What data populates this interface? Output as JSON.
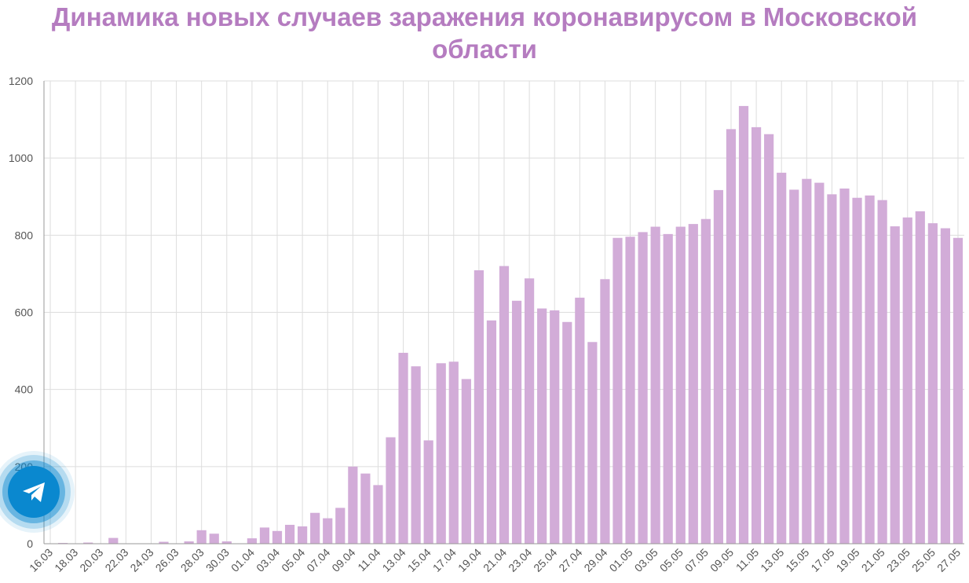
{
  "header": {
    "title_line1": "Динамика новых случаев заражения коронавирусом в Московской",
    "title_line2": "области"
  },
  "colors": {
    "bar": "#d2acd8",
    "title": "#b57cc0",
    "grid": "#dddddd",
    "telegram": "#0a88cf"
  },
  "telegram_button": {
    "icon": "telegram-icon"
  },
  "chart_data": {
    "type": "bar",
    "title": "Динамика новых случаев заражения коронавирусом в Московской области",
    "xlabel": "",
    "ylabel": "",
    "ylim": [
      0,
      1200
    ],
    "yticks": [
      0,
      200,
      400,
      600,
      800,
      1000,
      1200
    ],
    "grid": true,
    "categories": [
      "16.03",
      "17.03",
      "18.03",
      "19.03",
      "20.03",
      "21.03",
      "22.03",
      "23.03",
      "24.03",
      "25.03",
      "26.03",
      "27.03",
      "28.03",
      "29.03",
      "30.03",
      "31.03",
      "01.04",
      "02.04",
      "03.04",
      "04.04",
      "05.04",
      "06.04",
      "07.04",
      "08.04",
      "09.04",
      "10.04",
      "11.04",
      "12.04",
      "13.04",
      "14.04",
      "15.04",
      "16.04",
      "17.04",
      "18.04",
      "19.04",
      "20.04",
      "21.04",
      "22.04",
      "23.04",
      "24.04",
      "25.04",
      "26.04",
      "27.04",
      "28.04",
      "29.04",
      "30.04",
      "01.05",
      "02.05",
      "03.05",
      "04.05",
      "05.05",
      "06.05",
      "07.05",
      "08.05",
      "09.05",
      "10.05",
      "11.05",
      "12.05",
      "13.05",
      "14.05",
      "15.05",
      "16.05",
      "17.05",
      "18.05",
      "19.05",
      "20.05",
      "21.05",
      "22.05",
      "23.05",
      "24.05",
      "25.05",
      "26.05",
      "27.05"
    ],
    "tick_labels": [
      "16.03",
      "18.03",
      "20.03",
      "22.03",
      "24.03",
      "26.03",
      "28.03",
      "30.03",
      "01.04",
      "03.04",
      "05.04",
      "07.04",
      "09.04",
      "11.04",
      "13.04",
      "15.04",
      "17.04",
      "19.04",
      "21.04",
      "23.04",
      "25.04",
      "27.04",
      "29.04",
      "01.05",
      "03.05",
      "05.05",
      "07.05",
      "09.05",
      "11.05",
      "13.05",
      "15.05",
      "17.05",
      "19.05",
      "21.05",
      "23.05",
      "25.05",
      "27.05"
    ],
    "values": [
      1,
      2,
      1,
      3,
      0,
      15,
      0,
      0,
      0,
      5,
      0,
      6,
      35,
      26,
      6,
      0,
      14,
      42,
      33,
      49,
      45,
      80,
      66,
      93,
      200,
      182,
      152,
      276,
      495,
      460,
      268,
      468,
      472,
      427,
      709,
      579,
      720,
      630,
      688,
      610,
      605,
      575,
      638,
      523,
      686,
      793,
      796,
      808,
      822,
      803,
      822,
      829,
      842,
      917,
      1075,
      1135,
      1080,
      1062,
      962,
      918,
      946,
      936,
      906,
      921,
      897,
      903,
      891,
      823,
      846,
      862,
      831,
      818,
      793
    ]
  }
}
